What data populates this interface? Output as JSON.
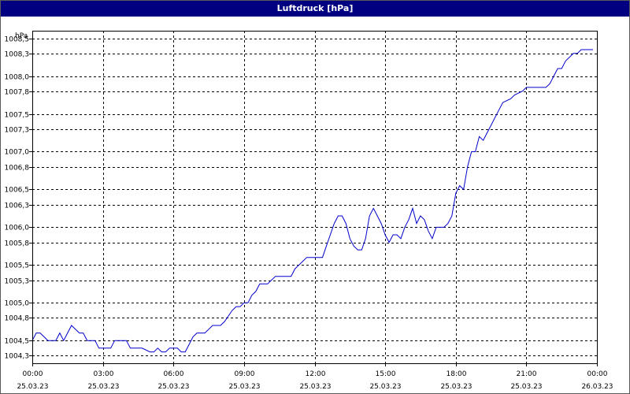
{
  "window": {
    "title": "Luftdruck [hPa]"
  },
  "chart_data": {
    "type": "line",
    "title": "Luftdruck [hPa]",
    "ylabel": "hPa",
    "xlabel": "",
    "ylim": [
      1004.2,
      1008.6
    ],
    "grid": true,
    "y_ticks": [
      "1004,3",
      "1004,5",
      "1004,8",
      "1005,0",
      "1005,3",
      "1005,5",
      "1005,8",
      "1006,0",
      "1006,3",
      "1006,5",
      "1006,8",
      "1007,0",
      "1007,3",
      "1007,5",
      "1007,8",
      "1008,0",
      "1008,3",
      "1008,5"
    ],
    "x_ticks": [
      {
        "time": "00:00",
        "date": "25.03.23"
      },
      {
        "time": "03:00",
        "date": "25.03.23"
      },
      {
        "time": "06:00",
        "date": "25.03.23"
      },
      {
        "time": "09:00",
        "date": "25.03.23"
      },
      {
        "time": "12:00",
        "date": "25.03.23"
      },
      {
        "time": "15:00",
        "date": "25.03.23"
      },
      {
        "time": "18:00",
        "date": "25.03.23"
      },
      {
        "time": "21:00",
        "date": "25.03.23"
      },
      {
        "time": "00:00",
        "date": "26.03.23"
      }
    ],
    "series": [
      {
        "color": "#0000cc",
        "x": [
          "25.03.23 00:00",
          "25.03.23 00:10",
          "25.03.23 00:20",
          "25.03.23 00:40",
          "25.03.23 01:00",
          "25.03.23 01:10",
          "25.03.23 01:20",
          "25.03.23 01:30",
          "25.03.23 01:40",
          "25.03.23 02:00",
          "25.03.23 02:10",
          "25.03.23 02:20",
          "25.03.23 02:40",
          "25.03.23 02:50",
          "25.03.23 03:00",
          "25.03.23 03:20",
          "25.03.23 03:30",
          "25.03.23 03:40",
          "25.03.23 04:00",
          "25.03.23 04:10",
          "25.03.23 04:20",
          "25.03.23 04:40",
          "25.03.23 05:00",
          "25.03.23 05:10",
          "25.03.23 05:20",
          "25.03.23 05:30",
          "25.03.23 05:40",
          "25.03.23 05:50",
          "25.03.23 06:00",
          "25.03.23 06:10",
          "25.03.23 06:20",
          "25.03.23 06:30",
          "25.03.23 06:40",
          "25.03.23 06:50",
          "25.03.23 07:00",
          "25.03.23 07:10",
          "25.03.23 07:20",
          "25.03.23 07:30",
          "25.03.23 07:40",
          "25.03.23 08:00",
          "25.03.23 08:10",
          "25.03.23 08:30",
          "25.03.23 08:40",
          "25.03.23 08:50",
          "25.03.23 09:00",
          "25.03.23 09:10",
          "25.03.23 09:20",
          "25.03.23 09:30",
          "25.03.23 09:40",
          "25.03.23 10:00",
          "25.03.23 10:10",
          "25.03.23 10:20",
          "25.03.23 10:40",
          "25.03.23 11:00",
          "25.03.23 11:10",
          "25.03.23 11:20",
          "25.03.23 11:30",
          "25.03.23 11:40",
          "25.03.23 12:00",
          "25.03.23 12:10",
          "25.03.23 12:20",
          "25.03.23 12:30",
          "25.03.23 12:40",
          "25.03.23 12:50",
          "25.03.23 13:00",
          "25.03.23 13:10",
          "25.03.23 13:20",
          "25.03.23 13:30",
          "25.03.23 13:40",
          "25.03.23 13:50",
          "25.03.23 14:00",
          "25.03.23 14:10",
          "25.03.23 14:20",
          "25.03.23 14:30",
          "25.03.23 14:40",
          "25.03.23 14:50",
          "25.03.23 15:00",
          "25.03.23 15:10",
          "25.03.23 15:20",
          "25.03.23 15:30",
          "25.03.23 15:40",
          "25.03.23 15:50",
          "25.03.23 16:00",
          "25.03.23 16:10",
          "25.03.23 16:20",
          "25.03.23 16:30",
          "25.03.23 16:40",
          "25.03.23 16:50",
          "25.03.23 17:00",
          "25.03.23 17:10",
          "25.03.23 17:20",
          "25.03.23 17:30",
          "25.03.23 17:40",
          "25.03.23 17:50",
          "25.03.23 18:00",
          "25.03.23 18:10",
          "25.03.23 18:20",
          "25.03.23 18:30",
          "25.03.23 18:40",
          "25.03.23 18:50",
          "25.03.23 19:00",
          "25.03.23 19:10",
          "25.03.23 19:20",
          "25.03.23 19:30",
          "25.03.23 19:40",
          "25.03.23 19:50",
          "25.03.23 20:00",
          "25.03.23 20:20",
          "25.03.23 20:30",
          "25.03.23 20:50",
          "25.03.23 21:00",
          "25.03.23 21:10",
          "25.03.23 21:50",
          "25.03.23 22:00",
          "25.03.23 22:10",
          "25.03.23 22:20",
          "25.03.23 22:30",
          "25.03.23 22:40",
          "25.03.23 23:00",
          "25.03.23 23:10",
          "25.03.23 23:20",
          "25.03.23 23:50"
        ],
        "values": [
          1004.5,
          1004.6,
          1004.6,
          1004.5,
          1004.5,
          1004.6,
          1004.5,
          1004.6,
          1004.7,
          1004.6,
          1004.6,
          1004.5,
          1004.5,
          1004.4,
          1004.4,
          1004.4,
          1004.5,
          1004.5,
          1004.5,
          1004.4,
          1004.4,
          1004.4,
          1004.35,
          1004.35,
          1004.4,
          1004.35,
          1004.35,
          1004.4,
          1004.4,
          1004.4,
          1004.35,
          1004.35,
          1004.45,
          1004.55,
          1004.6,
          1004.6,
          1004.6,
          1004.65,
          1004.7,
          1004.7,
          1004.75,
          1004.9,
          1004.95,
          1004.95,
          1005.0,
          1005.0,
          1005.1,
          1005.15,
          1005.25,
          1005.25,
          1005.3,
          1005.35,
          1005.35,
          1005.35,
          1005.45,
          1005.5,
          1005.55,
          1005.6,
          1005.6,
          1005.6,
          1005.6,
          1005.75,
          1005.9,
          1006.05,
          1006.15,
          1006.15,
          1006.05,
          1005.85,
          1005.75,
          1005.7,
          1005.7,
          1005.85,
          1006.15,
          1006.25,
          1006.15,
          1006.05,
          1005.9,
          1005.8,
          1005.9,
          1005.9,
          1005.85,
          1006.0,
          1006.1,
          1006.25,
          1006.05,
          1006.15,
          1006.1,
          1005.95,
          1005.85,
          1006.0,
          1006.0,
          1006.0,
          1006.05,
          1006.15,
          1006.45,
          1006.55,
          1006.5,
          1006.8,
          1007.0,
          1007.0,
          1007.2,
          1007.15,
          1007.25,
          1007.35,
          1007.45,
          1007.55,
          1007.65,
          1007.7,
          1007.75,
          1007.8,
          1007.85,
          1007.85,
          1007.85,
          1007.9,
          1008.0,
          1008.1,
          1008.1,
          1008.2,
          1008.3,
          1008.3,
          1008.35,
          1008.35
        ]
      }
    ]
  }
}
